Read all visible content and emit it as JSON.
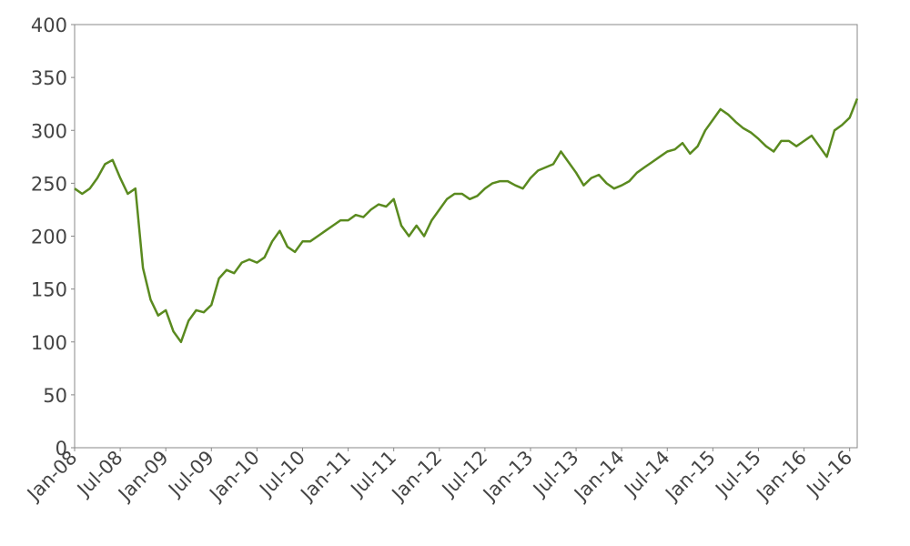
{
  "chart_data": {
    "type": "line",
    "x": [
      "2008-01",
      "2008-02",
      "2008-03",
      "2008-04",
      "2008-05",
      "2008-06",
      "2008-07",
      "2008-08",
      "2008-09",
      "2008-10",
      "2008-11",
      "2008-12",
      "2009-01",
      "2009-02",
      "2009-03",
      "2009-04",
      "2009-05",
      "2009-06",
      "2009-07",
      "2009-08",
      "2009-09",
      "2009-10",
      "2009-11",
      "2009-12",
      "2010-01",
      "2010-02",
      "2010-03",
      "2010-04",
      "2010-05",
      "2010-06",
      "2010-07",
      "2010-08",
      "2010-09",
      "2010-10",
      "2010-11",
      "2010-12",
      "2011-01",
      "2011-02",
      "2011-03",
      "2011-04",
      "2011-05",
      "2011-06",
      "2011-07",
      "2011-08",
      "2011-09",
      "2011-10",
      "2011-11",
      "2011-12",
      "2012-01",
      "2012-02",
      "2012-03",
      "2012-04",
      "2012-05",
      "2012-06",
      "2012-07",
      "2012-08",
      "2012-09",
      "2012-10",
      "2012-11",
      "2012-12",
      "2013-01",
      "2013-02",
      "2013-03",
      "2013-04",
      "2013-05",
      "2013-06",
      "2013-07",
      "2013-08",
      "2013-09",
      "2013-10",
      "2013-11",
      "2013-12",
      "2014-01",
      "2014-02",
      "2014-03",
      "2014-04",
      "2014-05",
      "2014-06",
      "2014-07",
      "2014-08",
      "2014-09",
      "2014-10",
      "2014-11",
      "2014-12",
      "2015-01",
      "2015-02",
      "2015-03",
      "2015-04",
      "2015-05",
      "2015-06",
      "2015-07",
      "2015-08",
      "2015-09",
      "2015-10",
      "2015-11",
      "2015-12",
      "2016-01",
      "2016-02",
      "2016-03",
      "2016-04",
      "2016-05",
      "2016-06",
      "2016-07",
      "2016-08"
    ],
    "series": [
      {
        "color": "#5a8a1f",
        "values": [
          245,
          240,
          245,
          255,
          268,
          272,
          255,
          240,
          245,
          170,
          140,
          125,
          130,
          110,
          100,
          120,
          130,
          128,
          135,
          160,
          168,
          165,
          175,
          178,
          175,
          180,
          195,
          205,
          190,
          185,
          195,
          195,
          200,
          205,
          210,
          215,
          215,
          220,
          218,
          225,
          230,
          228,
          235,
          210,
          200,
          210,
          200,
          215,
          225,
          235,
          240,
          240,
          235,
          238,
          245,
          250,
          252,
          252,
          248,
          245,
          255,
          262,
          265,
          268,
          280,
          270,
          260,
          248,
          255,
          258,
          250,
          245,
          248,
          252,
          260,
          265,
          270,
          275,
          280,
          282,
          288,
          278,
          285,
          300,
          310,
          320,
          315,
          308,
          302,
          298,
          292,
          285,
          280,
          290,
          290,
          285,
          290,
          295,
          285,
          275,
          300,
          305,
          312,
          330
        ]
      }
    ],
    "xlim": [
      "2008-01",
      "2016-08"
    ],
    "xticks": [
      {
        "value": "2008-01",
        "label": "Jan-08"
      },
      {
        "value": "2008-07",
        "label": "Jul-08"
      },
      {
        "value": "2009-01",
        "label": "Jan-09"
      },
      {
        "value": "2009-07",
        "label": "Jul-09"
      },
      {
        "value": "2010-01",
        "label": "Jan-10"
      },
      {
        "value": "2010-07",
        "label": "Jul-10"
      },
      {
        "value": "2011-01",
        "label": "Jan-11"
      },
      {
        "value": "2011-07",
        "label": "Jul-11"
      },
      {
        "value": "2012-01",
        "label": "Jan-12"
      },
      {
        "value": "2012-07",
        "label": "Jul-12"
      },
      {
        "value": "2013-01",
        "label": "Jan-13"
      },
      {
        "value": "2013-07",
        "label": "Jul-13"
      },
      {
        "value": "2014-01",
        "label": "Jan-14"
      },
      {
        "value": "2014-07",
        "label": "Jul-14"
      },
      {
        "value": "2015-01",
        "label": "Jan-15"
      },
      {
        "value": "2015-07",
        "label": "Jul-15"
      },
      {
        "value": "2016-01",
        "label": "Jan-16"
      },
      {
        "value": "2016-07",
        "label": "Jul-16"
      }
    ],
    "ylim": [
      0,
      400
    ],
    "yticks": [
      0,
      50,
      100,
      150,
      200,
      250,
      300,
      350,
      400
    ],
    "grid": false
  }
}
